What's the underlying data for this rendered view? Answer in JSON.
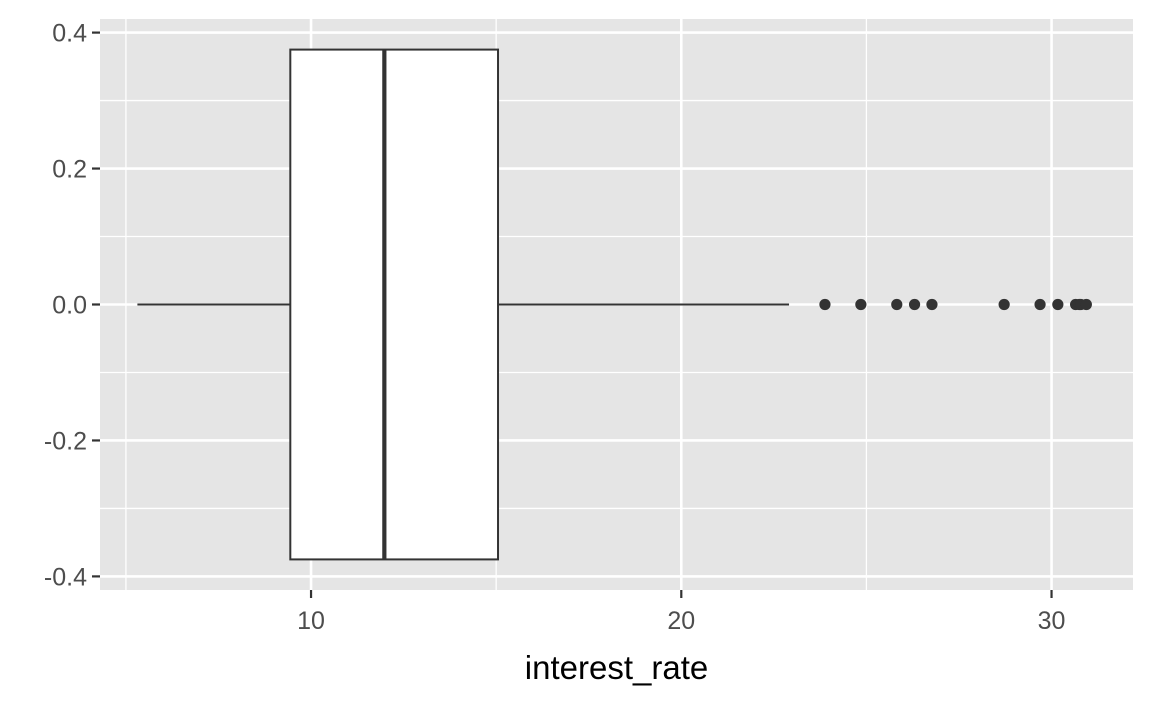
{
  "chart_data": {
    "type": "boxplot",
    "orientation": "horizontal",
    "xlabel": "interest_rate",
    "ylabel": "",
    "xlim": [
      4.3,
      32.2
    ],
    "ylim": [
      -0.42,
      0.42
    ],
    "x_ticks": [
      10,
      20,
      30
    ],
    "x_tick_labels": [
      "10",
      "20",
      "30"
    ],
    "y_ticks": [
      -0.4,
      -0.2,
      0.0,
      0.2,
      0.4
    ],
    "y_tick_labels": [
      "-0.4",
      "-0.2",
      "0.0",
      "0.2",
      "0.4"
    ],
    "grid": true,
    "box": {
      "whisker_low": 5.31,
      "q1": 9.44,
      "median": 11.98,
      "q3": 15.05,
      "whisker_high": 22.91,
      "y_center": 0.0,
      "y_half_width": 0.375
    },
    "outliers": [
      23.88,
      24.85,
      25.82,
      26.3,
      26.77,
      28.72,
      29.69,
      30.17,
      30.65,
      30.75,
      30.79,
      30.94
    ],
    "colors": {
      "panel": "#e5e5e5",
      "grid": "#ffffff",
      "box_fill": "#ffffff",
      "box_stroke": "#333333",
      "points": "#333333"
    }
  }
}
